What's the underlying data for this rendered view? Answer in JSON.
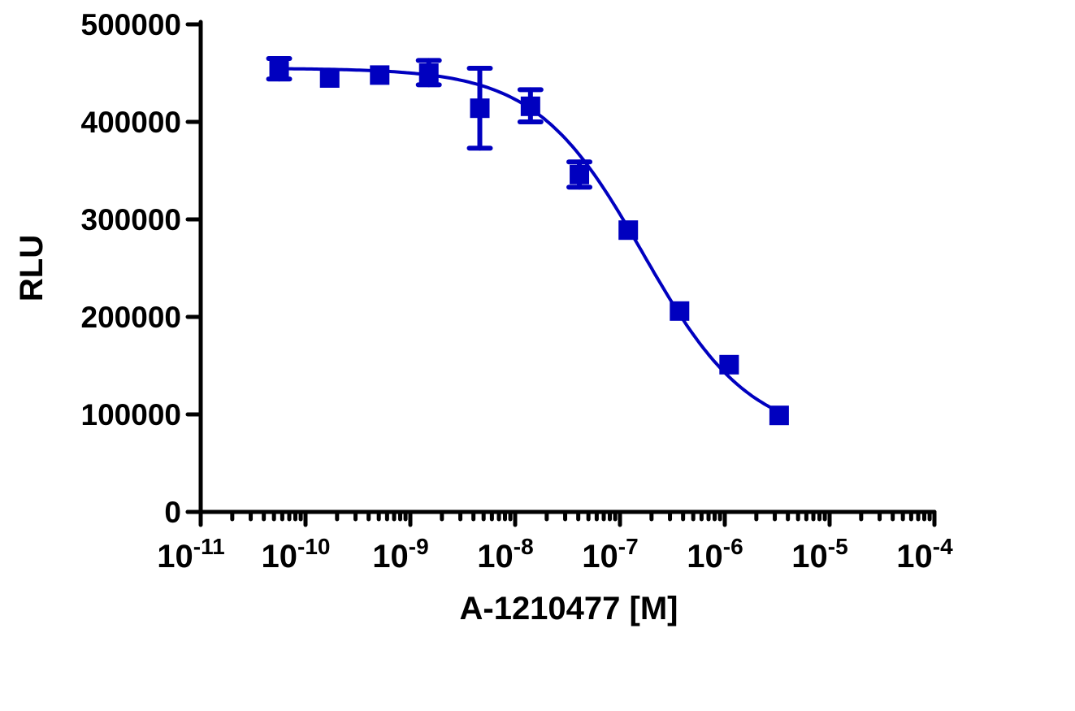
{
  "chart_data": {
    "type": "scatter",
    "title": "",
    "xlabel": "A-1210477 [M]",
    "ylabel": "RLU",
    "x_scale": "log",
    "xlim": [
      1e-11,
      0.0001
    ],
    "ylim": [
      0,
      500000
    ],
    "grid": false,
    "color": "#0000bf",
    "x_ticks": [
      {
        "base": "10",
        "exp": "-11",
        "value": 1e-11
      },
      {
        "base": "10",
        "exp": "-10",
        "value": 1e-10
      },
      {
        "base": "10",
        "exp": "-9",
        "value": 1e-09
      },
      {
        "base": "10",
        "exp": "-8",
        "value": 1e-08
      },
      {
        "base": "10",
        "exp": "-7",
        "value": 1e-07
      },
      {
        "base": "10",
        "exp": "-6",
        "value": 1e-06
      },
      {
        "base": "10",
        "exp": "-5",
        "value": 1e-05
      },
      {
        "base": "10",
        "exp": "-4",
        "value": 0.0001
      }
    ],
    "y_ticks": [
      "0",
      "100000",
      "200000",
      "300000",
      "400000",
      "500000"
    ],
    "series": [
      {
        "marker": "square",
        "points": [
          {
            "x": 5.6e-11,
            "y": 455000,
            "err_low": 444000,
            "err_high": 465000
          },
          {
            "x": 1.7e-10,
            "y": 445000
          },
          {
            "x": 5.1e-10,
            "y": 448000
          },
          {
            "x": 1.5e-09,
            "y": 450000,
            "err_low": 438000,
            "err_high": 463000
          },
          {
            "x": 4.6e-09,
            "y": 414000,
            "err_low": 373000,
            "err_high": 455000
          },
          {
            "x": 1.4e-08,
            "y": 416000,
            "err_low": 400000,
            "err_high": 433000
          },
          {
            "x": 4.1e-08,
            "y": 346000,
            "err_low": 333000,
            "err_high": 359000
          },
          {
            "x": 1.2e-07,
            "y": 289000
          },
          {
            "x": 3.7e-07,
            "y": 206000
          },
          {
            "x": 1.1e-06,
            "y": 151000
          },
          {
            "x": 3.3e-06,
            "y": 99000
          }
        ],
        "fit": {
          "model": "four-parameter logistic",
          "top": 455000,
          "bottom": 75000,
          "logIC50": -6.78,
          "hill": 0.85
        }
      }
    ]
  }
}
